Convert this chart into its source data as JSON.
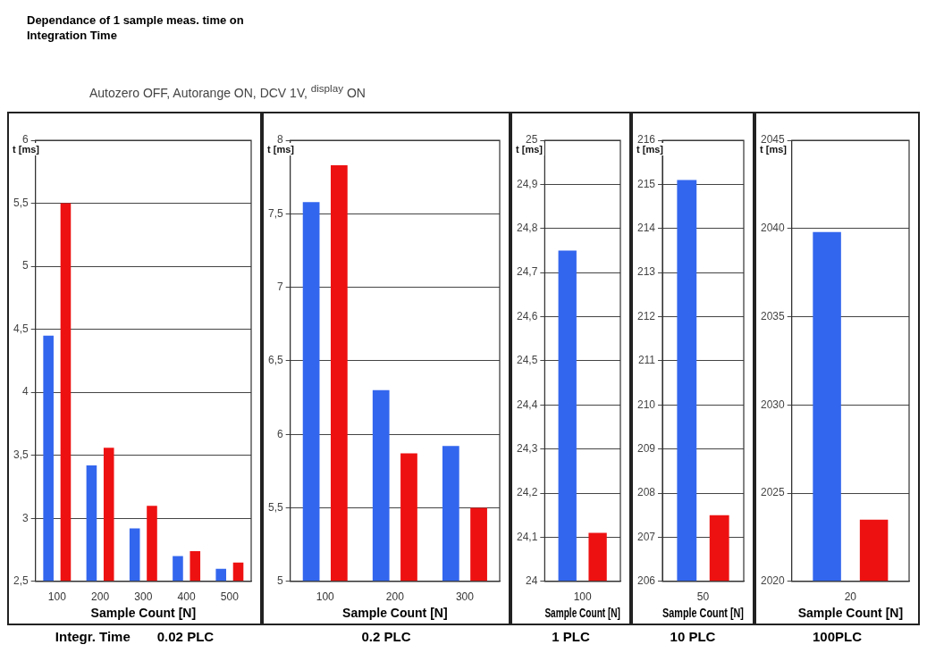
{
  "chart_data": [
    {
      "type": "bar",
      "title": "Dependance of 1 sample meas. time on Integration Time",
      "subtitle": "Autozero OFF, Autorange ON, DCV 1V, $^{display}$ ON",
      "xlabel": "Sample Count [N]",
      "ylabel": "t [ms]",
      "annotations": [
        "Integr. Time",
        "0.02 PLC"
      ],
      "categories": [
        "100",
        "200",
        "300",
        "400",
        "500"
      ],
      "series": [
        {
          "color": "#3366ee",
          "values": [
            4.45,
            3.42,
            2.92,
            2.7,
            2.6
          ]
        },
        {
          "color": "#ee1111",
          "values": [
            5.5,
            3.56,
            3.1,
            2.74,
            2.65
          ]
        }
      ],
      "ylim": [
        2.5,
        6
      ],
      "yticks": [
        {
          "value": 2.5,
          "label": "2,5"
        },
        3,
        {
          "value": 3.5,
          "label": "3,5"
        },
        4,
        {
          "value": 4.5,
          "label": "4,5"
        },
        5,
        {
          "value": 5.5,
          "label": "5,5"
        },
        6
      ],
      "grid": "y",
      "legend": false
    },
    {
      "type": "bar",
      "xlabel": "Sample Count [N]",
      "ylabel": "t [ms]",
      "annotations": [
        "0.2 PLC"
      ],
      "categories": [
        "100",
        "200",
        "300"
      ],
      "series": [
        {
          "color": "#3366ee",
          "values": [
            7.58,
            6.3,
            5.92
          ]
        },
        {
          "color": "#ee1111",
          "values": [
            7.83,
            5.87,
            5.5
          ]
        }
      ],
      "ylim": [
        5,
        8
      ],
      "yticks": [
        5,
        {
          "value": 5.5,
          "label": "5,5"
        },
        6,
        {
          "value": 6.5,
          "label": "6,5"
        },
        7,
        {
          "value": 7.5,
          "label": "7,5"
        },
        8
      ],
      "grid": "y",
      "legend": false
    },
    {
      "type": "bar",
      "xlabel": "Sample Count [N]",
      "ylabel": "t [ms]",
      "annotations": [
        "1 PLC"
      ],
      "categories": [
        "100"
      ],
      "series": [
        {
          "color": "#3366ee",
          "values": [
            24.75
          ]
        },
        {
          "color": "#ee1111",
          "values": [
            24.11
          ]
        }
      ],
      "ylim": [
        24,
        25
      ],
      "yticks": [
        24,
        {
          "value": 24.1,
          "label": "24,1"
        },
        {
          "value": 24.2,
          "label": "24,2"
        },
        {
          "value": 24.3,
          "label": "24,3"
        },
        {
          "value": 24.4,
          "label": "24,4"
        },
        {
          "value": 24.5,
          "label": "24,5"
        },
        {
          "value": 24.6,
          "label": "24,6"
        },
        {
          "value": 24.7,
          "label": "24,7"
        },
        {
          "value": 24.8,
          "label": "24,8"
        },
        {
          "value": 24.9,
          "label": "24,9"
        },
        25
      ],
      "grid": "y",
      "legend": false
    },
    {
      "type": "bar",
      "xlabel": "Sample Count [N]",
      "ylabel": "t [ms]",
      "annotations": [
        "10 PLC"
      ],
      "categories": [
        "50"
      ],
      "series": [
        {
          "color": "#3366ee",
          "values": [
            215.1
          ]
        },
        {
          "color": "#ee1111",
          "values": [
            207.5
          ]
        }
      ],
      "ylim": [
        206,
        216
      ],
      "yticks": [
        206,
        207,
        208,
        209,
        210,
        211,
        212,
        213,
        214,
        215,
        216
      ],
      "grid": "y",
      "legend": false
    },
    {
      "type": "bar",
      "xlabel": "Sample Count [N]",
      "ylabel": "t [ms]",
      "annotations": [
        "100PLC"
      ],
      "categories": [
        "20"
      ],
      "series": [
        {
          "color": "#3366ee",
          "values": [
            2039.8
          ]
        },
        {
          "color": "#ee1111",
          "values": [
            2023.5
          ]
        }
      ],
      "ylim": [
        2020,
        2045
      ],
      "yticks": [
        2020,
        2025,
        2030,
        2035,
        2040,
        2045
      ],
      "grid": "y",
      "legend": false
    }
  ]
}
